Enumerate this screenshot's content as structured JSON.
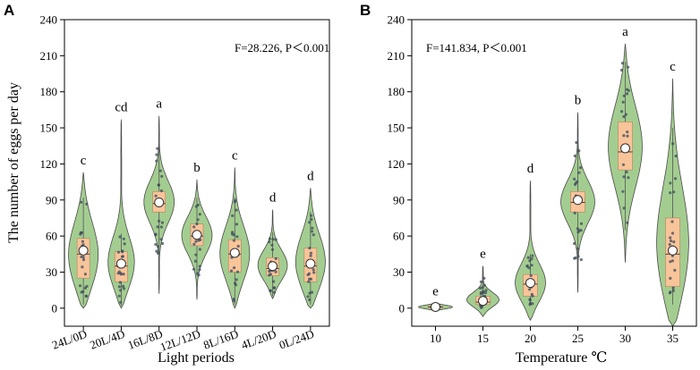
{
  "chart_data": [
    {
      "type": "violin",
      "panel_label": "A",
      "stat_text": "F=28.226, P＜0.001",
      "xlabel": "Light periods",
      "ylabel": "The number of eggs per day",
      "ylim": [
        -15,
        240
      ],
      "yticks": [
        "0",
        "30",
        "60",
        "90",
        "120",
        "150",
        "180",
        "210",
        "240"
      ],
      "categories": [
        "24L/0D",
        "20L/4D",
        "16L/8D",
        "12L/12D",
        "8L/16D",
        "4L/20D",
        "0L/24D"
      ],
      "series": [
        {
          "name": "24L/0D",
          "min": 0,
          "max": 113,
          "q1": 25,
          "q3": 58,
          "median": 45,
          "mean": 48,
          "whisker_low": 3,
          "whisker_high": 92,
          "letter": "c"
        },
        {
          "name": "20L/4D",
          "min": 0,
          "max": 157,
          "q1": 22,
          "q3": 47,
          "median": 35,
          "mean": 37,
          "whisker_low": 2,
          "whisker_high": 62,
          "letter": "cd"
        },
        {
          "name": "16L/8D",
          "min": 12,
          "max": 160,
          "q1": 80,
          "q3": 97,
          "median": 87,
          "mean": 88,
          "whisker_low": 45,
          "whisker_high": 143,
          "letter": "a"
        },
        {
          "name": "12L/12D",
          "min": 7,
          "max": 107,
          "q1": 52,
          "q3": 70,
          "median": 60,
          "mean": 61,
          "whisker_low": 27,
          "whisker_high": 92,
          "letter": "b"
        },
        {
          "name": "8L/16D",
          "min": 0,
          "max": 117,
          "q1": 30,
          "q3": 57,
          "median": 45,
          "mean": 46,
          "whisker_low": 3,
          "whisker_high": 92,
          "letter": "c"
        },
        {
          "name": "4L/20D",
          "min": 8,
          "max": 82,
          "q1": 27,
          "q3": 42,
          "median": 33,
          "mean": 35,
          "whisker_low": 10,
          "whisker_high": 63,
          "letter": "d"
        },
        {
          "name": "0L/24D",
          "min": 0,
          "max": 100,
          "q1": 22,
          "q3": 50,
          "median": 35,
          "mean": 37,
          "whisker_low": 3,
          "whisker_high": 80,
          "letter": "d"
        }
      ]
    },
    {
      "type": "violin",
      "panel_label": "B",
      "stat_text": "F=141.834, P＜0.001",
      "xlabel": "Temperature ℃",
      "ylabel": "",
      "ylim": [
        -15,
        240
      ],
      "yticks": [
        "0",
        "30",
        "60",
        "90",
        "120",
        "150",
        "180",
        "210",
        "240"
      ],
      "categories": [
        "10",
        "15",
        "20",
        "25",
        "30",
        "35"
      ],
      "series": [
        {
          "name": "10",
          "min": -2,
          "max": 4,
          "q1": 0,
          "q3": 2,
          "median": 1,
          "mean": 1,
          "whisker_low": 0,
          "whisker_high": 2,
          "letter": "e"
        },
        {
          "name": "15",
          "min": -7,
          "max": 35,
          "q1": 3,
          "q3": 10,
          "median": 5,
          "mean": 6,
          "whisker_low": 0,
          "whisker_high": 28,
          "letter": "e"
        },
        {
          "name": "20",
          "min": -10,
          "max": 106,
          "q1": 10,
          "q3": 28,
          "median": 20,
          "mean": 21,
          "whisker_low": 3,
          "whisker_high": 45,
          "letter": "d"
        },
        {
          "name": "25",
          "min": 13,
          "max": 163,
          "q1": 80,
          "q3": 97,
          "median": 88,
          "mean": 90,
          "whisker_low": 40,
          "whisker_high": 143,
          "letter": "b"
        },
        {
          "name": "30",
          "min": 38,
          "max": 220,
          "q1": 115,
          "q3": 155,
          "median": 130,
          "mean": 133,
          "whisker_low": 65,
          "whisker_high": 205,
          "letter": "a"
        },
        {
          "name": "35",
          "min": -15,
          "max": 191,
          "q1": 18,
          "q3": 75,
          "median": 45,
          "mean": 48,
          "whisker_low": 3,
          "whisker_high": 150,
          "letter": "c"
        }
      ]
    }
  ]
}
